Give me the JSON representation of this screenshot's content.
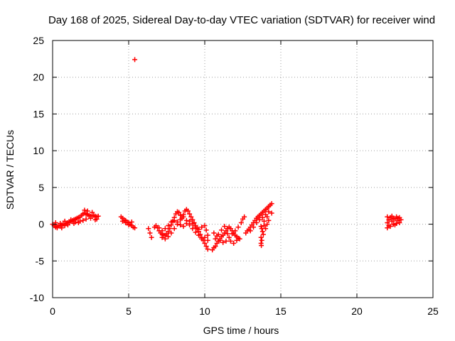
{
  "chart_data": {
    "type": "scatter",
    "title": "Day 168 of 2025, Sidereal Day-to-day VTEC variation (SDTVAR) for receiver wind",
    "xlabel": "GPS time / hours",
    "ylabel": "SDTVAR / TECUs",
    "xlim": [
      0,
      25
    ],
    "ylim": [
      -10,
      25
    ],
    "xticks": [
      0,
      5,
      10,
      15,
      20,
      25
    ],
    "yticks": [
      -10,
      -5,
      0,
      5,
      10,
      15,
      20,
      25
    ],
    "xtick_labels": [
      "0",
      "5",
      "10",
      "15",
      "20",
      "25"
    ],
    "ytick_labels": [
      "-10",
      "-5",
      "0",
      "5",
      "10",
      "15",
      "20",
      "25"
    ],
    "grid": true,
    "marker": "+",
    "color": "#ff0000",
    "series": [
      {
        "name": "SDTVAR",
        "points": [
          [
            0.0,
            0.0
          ],
          [
            0.1,
            -0.2
          ],
          [
            0.2,
            -0.4
          ],
          [
            0.3,
            -0.3
          ],
          [
            0.4,
            -0.2
          ],
          [
            0.5,
            -0.3
          ],
          [
            0.6,
            -0.1
          ],
          [
            0.7,
            0.0
          ],
          [
            0.8,
            -0.2
          ],
          [
            0.9,
            0.1
          ],
          [
            1.0,
            0.2
          ],
          [
            1.1,
            0.3
          ],
          [
            1.2,
            0.4
          ],
          [
            1.3,
            0.5
          ],
          [
            1.4,
            0.6
          ],
          [
            1.5,
            0.7
          ],
          [
            1.6,
            0.8
          ],
          [
            1.7,
            0.9
          ],
          [
            1.8,
            1.0
          ],
          [
            1.9,
            1.2
          ],
          [
            2.0,
            1.4
          ],
          [
            2.1,
            1.5
          ],
          [
            2.2,
            1.4
          ],
          [
            2.3,
            1.3
          ],
          [
            2.4,
            1.2
          ],
          [
            2.5,
            1.1
          ],
          [
            2.6,
            1.1
          ],
          [
            2.7,
            1.2
          ],
          [
            2.8,
            1.1
          ],
          [
            2.9,
            1.0
          ],
          [
            3.0,
            1.1
          ],
          [
            0.2,
            0.2
          ],
          [
            0.5,
            0.1
          ],
          [
            0.8,
            0.4
          ],
          [
            1.2,
            0.6
          ],
          [
            1.5,
            0.3
          ],
          [
            1.8,
            0.4
          ],
          [
            2.2,
            0.7
          ],
          [
            2.5,
            0.8
          ],
          [
            2.8,
            0.6
          ],
          [
            0.3,
            -0.5
          ],
          [
            0.6,
            -0.5
          ],
          [
            1.0,
            -0.1
          ],
          [
            1.4,
            0.1
          ],
          [
            1.7,
            0.2
          ],
          [
            2.0,
            0.5
          ],
          [
            2.3,
            1.8
          ],
          [
            2.1,
            1.9
          ],
          [
            2.6,
            1.6
          ],
          [
            2.9,
            0.7
          ],
          [
            4.5,
            1.0
          ],
          [
            4.6,
            0.8
          ],
          [
            4.7,
            0.6
          ],
          [
            4.8,
            0.5
          ],
          [
            4.9,
            0.3
          ],
          [
            5.0,
            0.2
          ],
          [
            5.1,
            0.0
          ],
          [
            5.2,
            -0.2
          ],
          [
            5.3,
            -0.4
          ],
          [
            5.4,
            -0.5
          ],
          [
            4.6,
            0.4
          ],
          [
            4.8,
            0.2
          ],
          [
            5.0,
            -0.1
          ],
          [
            5.2,
            0.3
          ],
          [
            5.4,
            22.4
          ],
          [
            6.3,
            -0.6
          ],
          [
            6.4,
            -1.2
          ],
          [
            6.5,
            -1.8
          ],
          [
            6.7,
            -0.4
          ],
          [
            6.8,
            -0.2
          ],
          [
            6.9,
            -0.5
          ],
          [
            7.0,
            -0.9
          ],
          [
            7.1,
            -1.2
          ],
          [
            7.2,
            -1.4
          ],
          [
            7.3,
            -1.5
          ],
          [
            7.4,
            -1.5
          ],
          [
            7.5,
            -1.3
          ],
          [
            7.6,
            -1.0
          ],
          [
            7.7,
            -0.6
          ],
          [
            7.8,
            -0.1
          ],
          [
            7.9,
            0.4
          ],
          [
            8.0,
            0.9
          ],
          [
            8.1,
            1.4
          ],
          [
            8.2,
            1.7
          ],
          [
            8.3,
            1.6
          ],
          [
            8.4,
            1.2
          ],
          [
            8.5,
            0.8
          ],
          [
            8.6,
            1.3
          ],
          [
            8.7,
            1.8
          ],
          [
            8.8,
            2.0
          ],
          [
            8.9,
            1.8
          ],
          [
            9.0,
            1.4
          ],
          [
            9.1,
            1.0
          ],
          [
            9.2,
            0.6
          ],
          [
            9.3,
            0.2
          ],
          [
            9.4,
            -0.2
          ],
          [
            9.5,
            -0.6
          ],
          [
            9.6,
            -1.0
          ],
          [
            9.7,
            -1.4
          ],
          [
            9.8,
            -1.8
          ],
          [
            9.9,
            -2.2
          ],
          [
            10.0,
            -2.6
          ],
          [
            10.1,
            -3.0
          ],
          [
            10.2,
            -3.4
          ],
          [
            7.0,
            -0.5
          ],
          [
            7.2,
            -0.9
          ],
          [
            7.4,
            -0.6
          ],
          [
            7.6,
            -0.2
          ],
          [
            7.8,
            0.3
          ],
          [
            8.0,
            0.5
          ],
          [
            8.2,
            0.3
          ],
          [
            8.4,
            -0.1
          ],
          [
            8.6,
            -0.3
          ],
          [
            8.8,
            0.1
          ],
          [
            9.0,
            0.4
          ],
          [
            9.2,
            0.1
          ],
          [
            9.4,
            -0.4
          ],
          [
            9.6,
            -0.7
          ],
          [
            9.8,
            -0.4
          ],
          [
            10.0,
            -0.2
          ],
          [
            10.1,
            -0.8
          ],
          [
            10.2,
            -1.5
          ],
          [
            7.2,
            -1.8
          ],
          [
            7.4,
            -2.0
          ],
          [
            7.6,
            -1.7
          ],
          [
            7.8,
            -1.2
          ],
          [
            8.0,
            -0.6
          ],
          [
            8.2,
            0.0
          ],
          [
            8.4,
            0.6
          ],
          [
            8.6,
            1.0
          ],
          [
            8.8,
            0.5
          ],
          [
            9.0,
            -0.1
          ],
          [
            9.2,
            -0.6
          ],
          [
            9.4,
            -1.1
          ],
          [
            9.6,
            -1.5
          ],
          [
            9.8,
            -2.0
          ],
          [
            10.0,
            -1.8
          ],
          [
            10.2,
            -2.2
          ],
          [
            10.5,
            -3.5
          ],
          [
            10.6,
            -3.2
          ],
          [
            10.7,
            -3.0
          ],
          [
            10.8,
            -2.6
          ],
          [
            10.9,
            -2.3
          ],
          [
            11.0,
            -2.0
          ],
          [
            11.1,
            -1.7
          ],
          [
            11.2,
            -1.5
          ],
          [
            11.3,
            -1.2
          ],
          [
            11.4,
            -0.9
          ],
          [
            11.5,
            -0.6
          ],
          [
            11.6,
            -0.4
          ],
          [
            11.7,
            -0.6
          ],
          [
            11.8,
            -0.9
          ],
          [
            11.9,
            -1.2
          ],
          [
            12.0,
            -1.5
          ],
          [
            12.1,
            -1.7
          ],
          [
            12.2,
            -1.9
          ],
          [
            12.3,
            -2.0
          ],
          [
            10.6,
            -1.2
          ],
          [
            10.8,
            -1.6
          ],
          [
            11.0,
            -2.2
          ],
          [
            11.2,
            -2.5
          ],
          [
            11.4,
            -2.3
          ],
          [
            11.6,
            -1.8
          ],
          [
            11.8,
            -1.3
          ],
          [
            12.0,
            -0.9
          ],
          [
            12.2,
            -0.4
          ],
          [
            12.4,
            0.2
          ],
          [
            12.5,
            0.7
          ],
          [
            12.6,
            1.0
          ],
          [
            10.7,
            -2.0
          ],
          [
            10.9,
            -1.4
          ],
          [
            11.1,
            -0.8
          ],
          [
            11.3,
            -0.3
          ],
          [
            11.5,
            -1.3
          ],
          [
            11.7,
            -2.3
          ],
          [
            11.9,
            -2.6
          ],
          [
            12.1,
            -2.2
          ],
          [
            12.7,
            -1.2
          ],
          [
            12.8,
            -0.9
          ],
          [
            12.9,
            -0.7
          ],
          [
            13.0,
            -0.4
          ],
          [
            13.1,
            -0.1
          ],
          [
            13.2,
            0.2
          ],
          [
            13.3,
            0.5
          ],
          [
            13.4,
            0.8
          ],
          [
            13.5,
            1.0
          ],
          [
            13.6,
            1.2
          ],
          [
            13.7,
            1.4
          ],
          [
            13.8,
            1.6
          ],
          [
            13.9,
            1.8
          ],
          [
            14.0,
            2.0
          ],
          [
            14.1,
            2.2
          ],
          [
            14.2,
            2.4
          ],
          [
            14.3,
            2.6
          ],
          [
            14.4,
            2.8
          ],
          [
            13.0,
            -0.9
          ],
          [
            13.2,
            -0.4
          ],
          [
            13.4,
            0.2
          ],
          [
            13.6,
            0.6
          ],
          [
            13.8,
            0.9
          ],
          [
            14.0,
            1.3
          ],
          [
            14.2,
            1.7
          ],
          [
            14.4,
            1.5
          ],
          [
            14.1,
            1.0
          ],
          [
            13.9,
            0.4
          ],
          [
            13.7,
            -0.3
          ],
          [
            13.75,
            -0.6
          ],
          [
            13.8,
            -1.0
          ],
          [
            13.85,
            -1.4
          ],
          [
            13.7,
            -1.8
          ],
          [
            13.75,
            -2.2
          ],
          [
            13.7,
            -2.6
          ],
          [
            13.72,
            -2.9
          ],
          [
            13.9,
            -0.2
          ],
          [
            14.0,
            -0.6
          ],
          [
            14.1,
            0.0
          ],
          [
            14.2,
            0.5
          ],
          [
            22.0,
            1.0
          ],
          [
            22.1,
            0.6
          ],
          [
            22.0,
            0.2
          ],
          [
            22.1,
            -0.2
          ],
          [
            22.0,
            -0.5
          ],
          [
            22.2,
            0.9
          ],
          [
            22.3,
            0.4
          ],
          [
            22.4,
            0.0
          ],
          [
            22.5,
            0.7
          ],
          [
            22.6,
            1.0
          ],
          [
            22.7,
            0.5
          ],
          [
            22.8,
            0.2
          ],
          [
            22.9,
            0.6
          ],
          [
            22.2,
            -0.3
          ],
          [
            22.4,
            0.8
          ],
          [
            22.6,
            0.1
          ],
          [
            22.8,
            0.9
          ],
          [
            22.3,
            1.1
          ],
          [
            22.5,
            -0.1
          ],
          [
            22.7,
            0.8
          ]
        ]
      }
    ]
  }
}
